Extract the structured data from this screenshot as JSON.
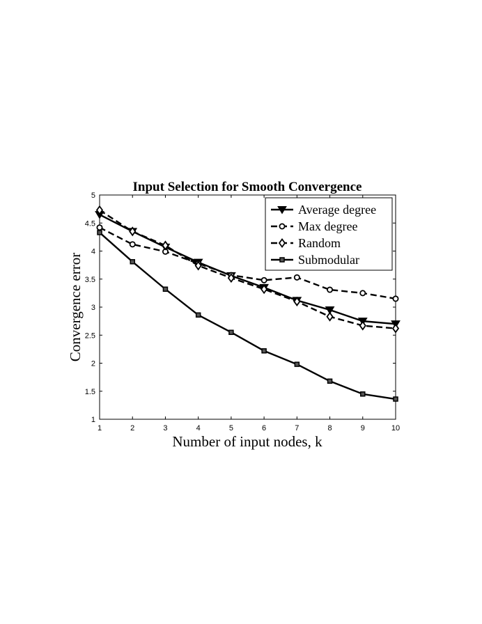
{
  "chart_data": {
    "type": "line",
    "title": "Input Selection for Smooth Convergence",
    "xlabel": "Number of input nodes, k",
    "ylabel": "Convergence error",
    "xlim": [
      1,
      10
    ],
    "ylim": [
      1,
      5
    ],
    "xticks": [
      "1",
      "2",
      "3",
      "4",
      "5",
      "6",
      "7",
      "8",
      "9",
      "10"
    ],
    "yticks": [
      "1",
      "1.5",
      "2",
      "2.5",
      "3",
      "3.5",
      "4",
      "4.5",
      "5"
    ],
    "grid": false,
    "legend_position": "top-right",
    "x": [
      1,
      2,
      3,
      4,
      5,
      6,
      7,
      8,
      9,
      10
    ],
    "series": [
      {
        "name": "Average degree",
        "values": [
          4.65,
          4.35,
          4.07,
          3.8,
          3.56,
          3.35,
          3.12,
          2.95,
          2.75,
          2.7
        ],
        "line_style": "solid",
        "marker": "triangle-down"
      },
      {
        "name": "Max degree",
        "values": [
          4.42,
          4.12,
          3.99,
          3.78,
          3.57,
          3.48,
          3.53,
          3.31,
          3.25,
          3.15
        ],
        "line_style": "dashed",
        "marker": "circle"
      },
      {
        "name": "Random",
        "values": [
          4.73,
          4.35,
          4.1,
          3.74,
          3.52,
          3.32,
          3.1,
          2.83,
          2.67,
          2.62
        ],
        "line_style": "dashed",
        "marker": "diamond"
      },
      {
        "name": "Submodular",
        "values": [
          4.33,
          3.81,
          3.32,
          2.86,
          2.55,
          2.22,
          1.98,
          1.68,
          1.45,
          1.36
        ],
        "line_style": "solid",
        "marker": "square"
      }
    ]
  }
}
